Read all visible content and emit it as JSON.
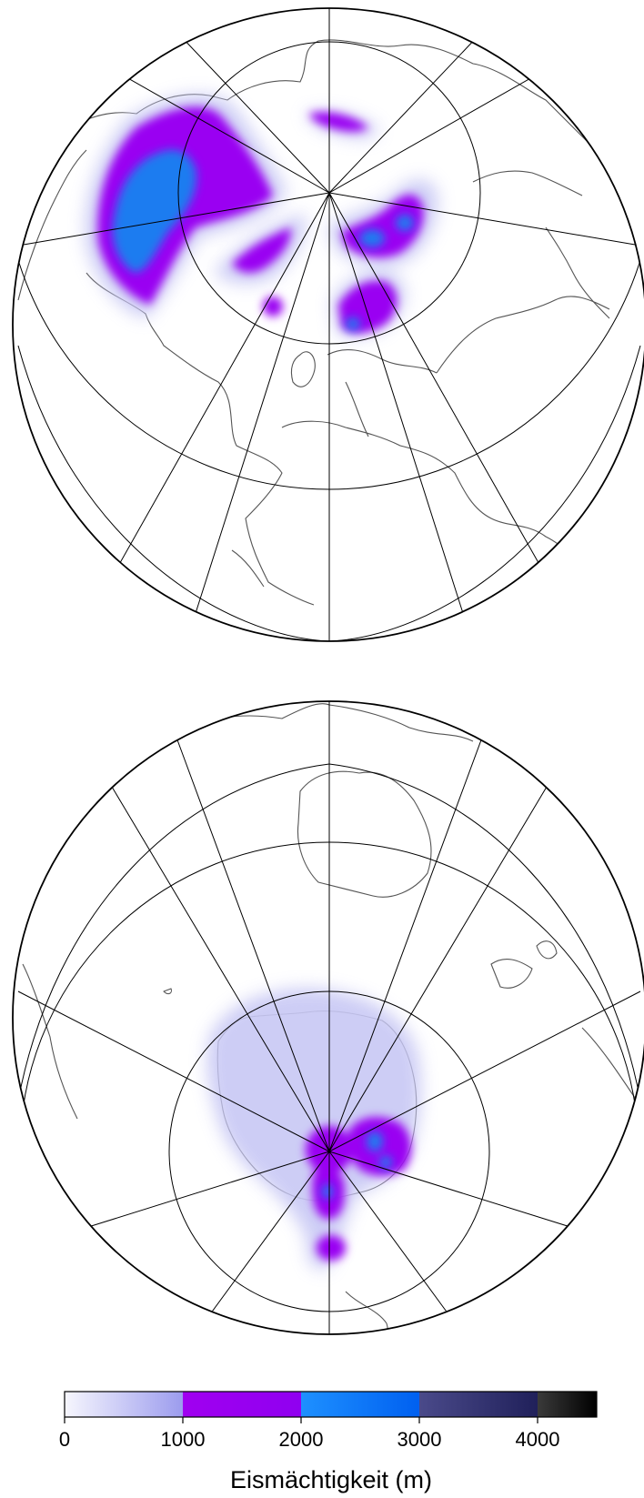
{
  "maps": [
    {
      "id": "north",
      "hemisphere": "north",
      "view": "polar-orthographic"
    },
    {
      "id": "south",
      "hemisphere": "south",
      "view": "polar-orthographic"
    }
  ],
  "colorbar": {
    "title": "Eismächtigkeit (m)",
    "range": [
      0,
      4500
    ],
    "ticks": [
      0,
      1000,
      2000,
      3000,
      4000
    ],
    "tick_labels": [
      "0",
      "1000",
      "2000",
      "3000",
      "4000"
    ],
    "segments": [
      {
        "from": 0,
        "to": 1000,
        "colors": [
          "#f6f6fd",
          "#9c9cee"
        ]
      },
      {
        "from": 1000,
        "to": 2000,
        "colors": [
          "#a000f0",
          "#9000f0"
        ]
      },
      {
        "from": 2000,
        "to": 3000,
        "colors": [
          "#1e90ff",
          "#0060f0"
        ]
      },
      {
        "from": 3000,
        "to": 4000,
        "colors": [
          "#4a4a8a",
          "#20205a"
        ]
      },
      {
        "from": 4000,
        "to": 4500,
        "colors": [
          "#3a3a3a",
          "#000000"
        ]
      }
    ]
  },
  "colors": {
    "thin_ice": "#c8c8f4",
    "mid_ice": "#9a00f2",
    "thick_ice": "#1a7cf0",
    "coastline": "#555555",
    "graticule": "#000000"
  }
}
